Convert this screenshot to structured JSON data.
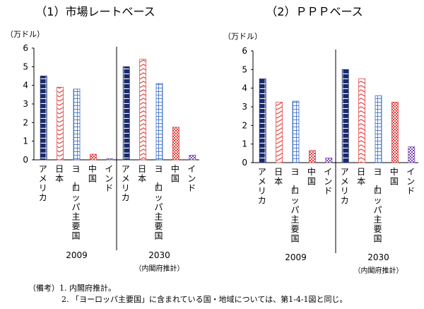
{
  "chart_data": [
    {
      "type": "bar",
      "title": "（1）市場レートベース",
      "ylabel": "（万ドル）",
      "ylim": [
        0,
        6
      ],
      "yticks": [
        0,
        1,
        2,
        3,
        4,
        5,
        6
      ],
      "groups": [
        {
          "label": "2009",
          "sublabel": "",
          "categories": [
            "アメリカ",
            "日本",
            "ヨーロッパ主要国",
            "中国",
            "インド"
          ],
          "values": [
            4.5,
            3.9,
            3.8,
            0.3,
            0.05
          ]
        },
        {
          "label": "2030",
          "sublabel": "（内閣府推計）",
          "categories": [
            "アメリカ",
            "日本",
            "ヨーロッパ主要国",
            "中国",
            "インド"
          ],
          "values": [
            5.0,
            5.4,
            4.1,
            1.75,
            0.25
          ]
        }
      ]
    },
    {
      "type": "bar",
      "title": "（2）ＰＰＰベース",
      "ylabel": "（万ドル）",
      "ylim": [
        0,
        6
      ],
      "yticks": [
        0,
        1,
        2,
        3,
        4,
        5,
        6
      ],
      "groups": [
        {
          "label": "2009",
          "sublabel": "",
          "categories": [
            "アメリカ",
            "日本",
            "ヨーロッパ主要国",
            "中国",
            "インド"
          ],
          "values": [
            4.5,
            3.25,
            3.3,
            0.65,
            0.25
          ]
        },
        {
          "label": "2030",
          "sublabel": "（内閣府推計）",
          "categories": [
            "アメリカ",
            "日本",
            "ヨーロッパ主要国",
            "中国",
            "インド"
          ],
          "values": [
            5.0,
            4.5,
            3.6,
            3.25,
            0.85
          ]
        }
      ]
    }
  ],
  "notes": {
    "label": "（備考）1. 内閣府推計。",
    "line2": "2. 「ヨーロッパ主要国」に含まれている国・地域については、第1-4-1図と同じ。"
  },
  "colors": {
    "america": "#1a2a6c",
    "japan": "#e24a4a",
    "europe": "#3d6fc4",
    "china": "#e23b3b",
    "india": "#7a4fb0"
  }
}
